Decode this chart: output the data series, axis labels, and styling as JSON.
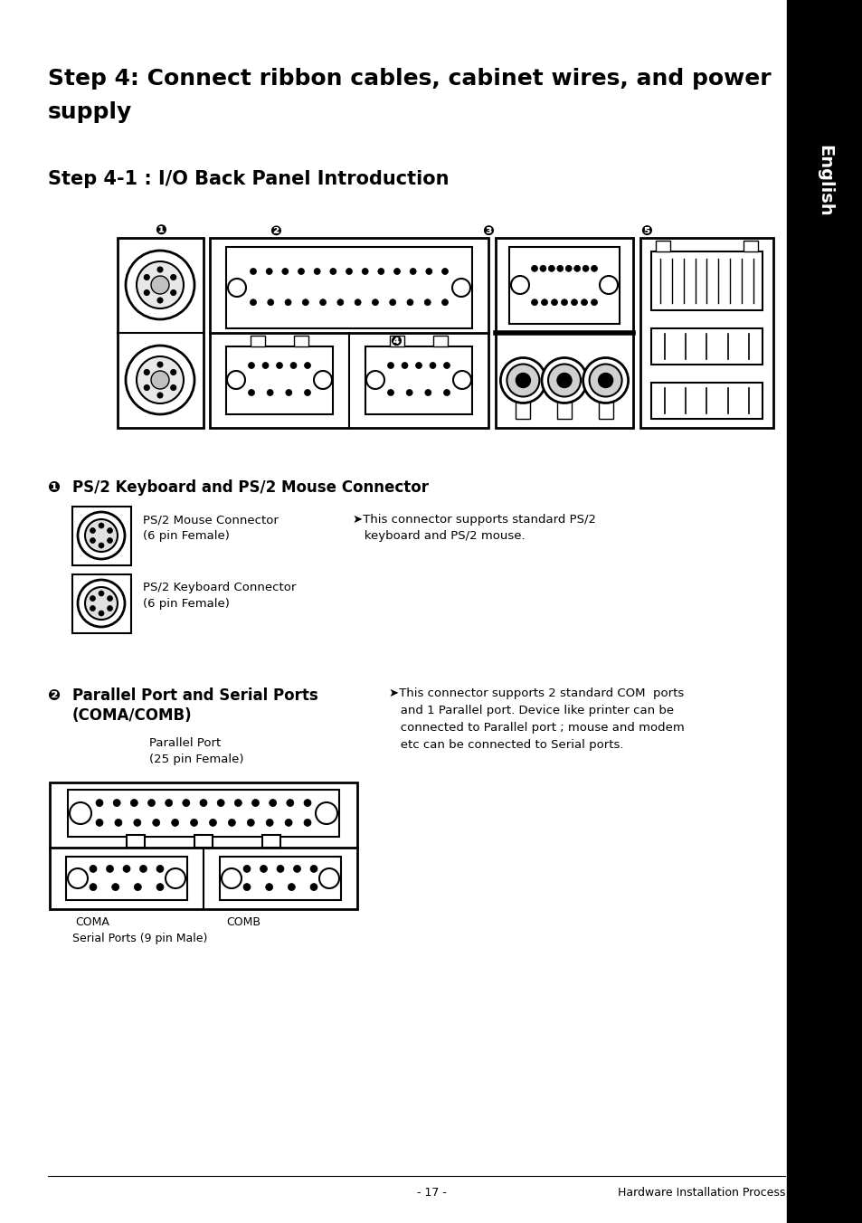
{
  "bg_color": "#ffffff",
  "page_width": 9.54,
  "page_height": 13.52,
  "sidebar_color": "#000000",
  "sidebar_text": "English",
  "title1_line1": "Step 4: Connect ribbon cables, cabinet wires, and power",
  "title1_line2": "supply",
  "title2": "Step 4-1 : I/O Back Panel Introduction",
  "section1_label": "❶",
  "section1_title": "PS/2 Keyboard and PS/2 Mouse Connector",
  "section1_item1_label": "PS/2 Mouse Connector",
  "section1_item1_detail": "(6 pin Female)",
  "section1_item2_label": "PS/2 Keyboard Connector",
  "section1_item2_detail": "(6 pin Female)",
  "section1_note_line1": "➤This connector supports standard PS/2",
  "section1_note_line2": "   keyboard and PS/2 mouse.",
  "section2_label": "❷",
  "section2_title_line1": "Parallel Port and Serial Ports",
  "section2_title_line2": "(COMA/COMB)",
  "section2_item1_label": "Parallel Port",
  "section2_item1_detail": "(25 pin Female)",
  "section2_item2_label1": "COMA",
  "section2_item2_label2": "COMB",
  "section2_item3_label": "Serial Ports (9 pin Male)",
  "section2_note_line1": "➤This connector supports 2 standard COM  ports",
  "section2_note_line2": "   and 1 Parallel port. Device like printer can be",
  "section2_note_line3": "   connected to Parallel port ; mouse and modem",
  "section2_note_line4": "   etc can be connected to Serial ports.",
  "footer_left": "- 17 -",
  "footer_right": "Hardware Installation Process",
  "num1": "❶",
  "num2": "❷",
  "num3": "❸",
  "num4": "❹",
  "num5": "❺"
}
